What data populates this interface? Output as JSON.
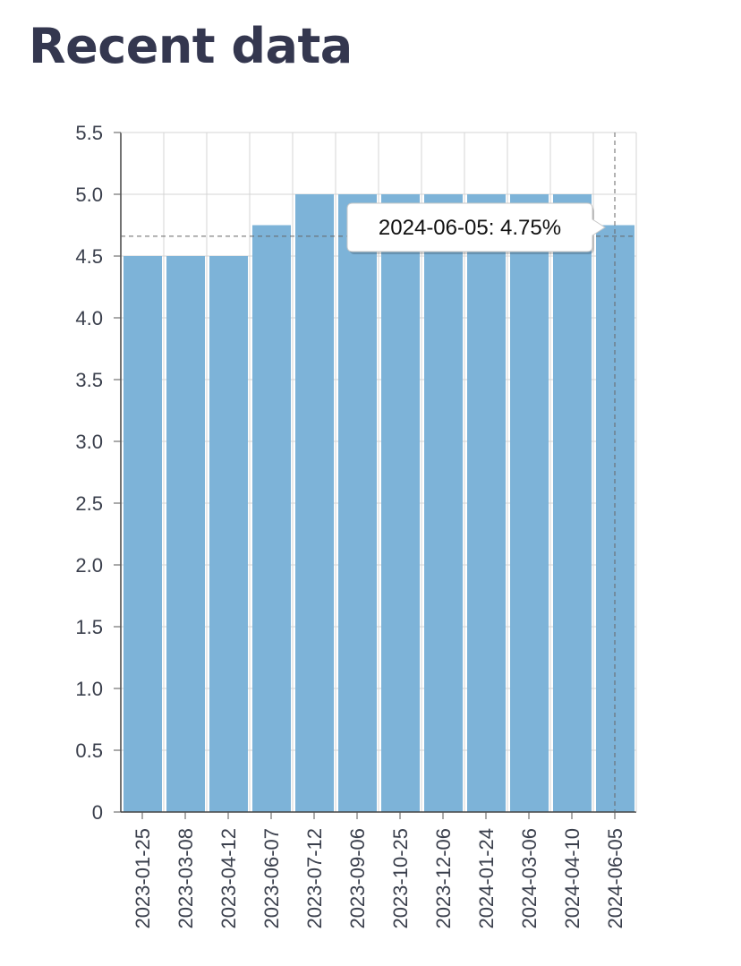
{
  "page": {
    "title": "Recent data"
  },
  "chart_data": {
    "type": "bar",
    "title": "",
    "xlabel": "",
    "ylabel": "",
    "categories": [
      "2023-01-25",
      "2023-03-08",
      "2023-04-12",
      "2023-06-07",
      "2023-07-12",
      "2023-09-06",
      "2023-10-25",
      "2023-12-06",
      "2024-01-24",
      "2024-03-06",
      "2024-04-10",
      "2024-06-05"
    ],
    "values": [
      4.5,
      4.5,
      4.5,
      4.75,
      5.0,
      5.0,
      5.0,
      5.0,
      5.0,
      5.0,
      5.0,
      4.75
    ],
    "ylim": [
      0,
      5.5
    ],
    "yticks": [
      "0",
      "0.5",
      "1.0",
      "1.5",
      "2.0",
      "2.5",
      "3.0",
      "3.5",
      "4.0",
      "4.5",
      "5.0",
      "5.5"
    ],
    "grid": true,
    "bar_color": "#7db3d8",
    "tooltip": {
      "text": "2024-06-05: 4.75%",
      "category_index": 11,
      "crosshair_value": 4.66
    }
  }
}
